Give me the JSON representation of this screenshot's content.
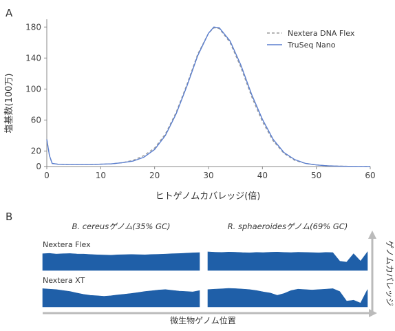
{
  "chart_data": [
    {
      "panel": "A",
      "type": "line",
      "xlabel": "ヒトゲノムカバレッジ(倍)",
      "ylabel": "塩基数(100万)",
      "xlim": [
        0,
        60
      ],
      "ylim": [
        0,
        190
      ],
      "xticks": [
        0,
        10,
        20,
        30,
        40,
        50,
        60
      ],
      "yticks": [
        0,
        20,
        60,
        100,
        140,
        180
      ],
      "grid": false,
      "legend_position": "top-right",
      "series": [
        {
          "name": "Nextera DNA Flex",
          "style": "dashed",
          "color": "#9a9a9a",
          "x": [
            0,
            0.5,
            1,
            2,
            4,
            6,
            8,
            10,
            12,
            14,
            16,
            18,
            20,
            22,
            24,
            26,
            28,
            30,
            31,
            32,
            34,
            36,
            38,
            40,
            42,
            44,
            46,
            48,
            50,
            52,
            54,
            56,
            58,
            60
          ],
          "y": [
            35,
            14,
            4,
            3,
            2.5,
            2.5,
            2.5,
            3,
            3.5,
            5,
            8,
            14,
            24,
            42,
            70,
            106,
            145,
            172,
            179,
            178,
            160,
            128,
            90,
            58,
            33,
            17,
            8,
            4,
            2,
            1,
            0.5,
            0.3,
            0.2,
            0.1
          ]
        },
        {
          "name": "TruSeq Nano",
          "style": "solid",
          "color": "#5b7fcf",
          "x": [
            0,
            0.5,
            1,
            2,
            4,
            6,
            8,
            10,
            12,
            14,
            16,
            18,
            20,
            22,
            24,
            26,
            28,
            30,
            31,
            32,
            34,
            36,
            38,
            40,
            42,
            44,
            46,
            48,
            50,
            52,
            54,
            56,
            58,
            60
          ],
          "y": [
            35,
            14,
            4,
            3,
            2.5,
            2.5,
            2.5,
            3,
            3.5,
            5,
            7,
            12,
            22,
            40,
            68,
            104,
            143,
            172,
            180,
            179,
            162,
            131,
            93,
            61,
            35,
            18,
            9,
            4,
            2,
            1,
            0.5,
            0.3,
            0.2,
            0.1
          ]
        }
      ]
    },
    {
      "panel": "B",
      "type": "area",
      "xlabel": "微生物ゲノム位置",
      "ylabel": "ゲノムカバレッジ",
      "genomes": [
        {
          "title": "B. cereusゲノム(35% GC)"
        },
        {
          "title": "R. sphaeroidesゲノム(69% GC)"
        }
      ],
      "rows": [
        {
          "label": "Nextera Flex",
          "series": [
            {
              "genome": 0,
              "values": [
                0.9,
                0.92,
                0.88,
                0.9,
                0.91,
                0.89,
                0.88,
                0.86,
                0.84,
                0.83,
                0.82,
                0.84,
                0.85,
                0.86,
                0.85,
                0.84,
                0.86,
                0.87,
                0.88,
                0.9,
                0.91,
                0.93,
                0.95,
                0.96
              ]
            },
            {
              "genome": 1,
              "values": [
                1.0,
                0.98,
                0.97,
                0.99,
                0.98,
                0.96,
                0.95,
                0.97,
                0.96,
                0.98,
                0.99,
                0.97,
                0.96,
                0.98,
                0.97,
                0.96,
                0.95,
                0.97,
                0.96,
                0.5,
                0.45,
                0.9,
                0.5,
                1.0
              ]
            }
          ]
        },
        {
          "label": "Nextera XT",
          "series": [
            {
              "genome": 0,
              "values": [
                0.95,
                0.92,
                0.9,
                0.85,
                0.8,
                0.72,
                0.65,
                0.6,
                0.58,
                0.55,
                0.58,
                0.62,
                0.66,
                0.7,
                0.75,
                0.8,
                0.84,
                0.88,
                0.9,
                0.86,
                0.82,
                0.8,
                0.78,
                0.85
              ]
            },
            {
              "genome": 1,
              "values": [
                0.9,
                0.92,
                0.94,
                0.96,
                0.95,
                0.93,
                0.9,
                0.85,
                0.78,
                0.72,
                0.6,
                0.7,
                0.85,
                0.92,
                0.9,
                0.88,
                0.9,
                0.92,
                0.95,
                0.8,
                0.3,
                0.35,
                0.2,
                0.9
              ]
            }
          ]
        }
      ]
    }
  ],
  "colors": {
    "coverage_fill": "#1f5fa8",
    "arrow": "#bbbbbb"
  }
}
